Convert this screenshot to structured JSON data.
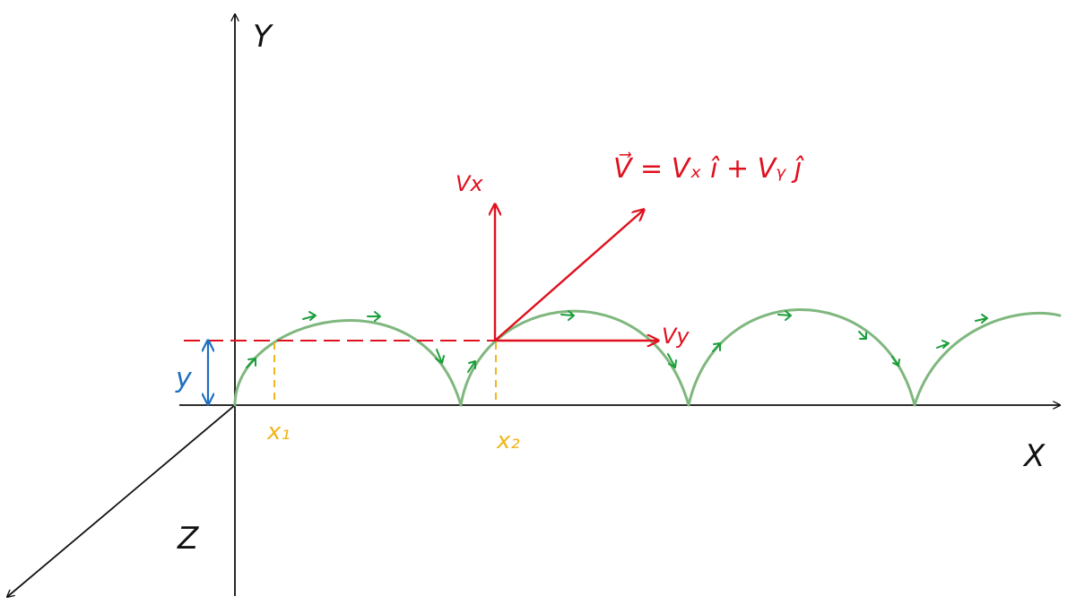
{
  "colors": {
    "axis": "#111111",
    "vector": "#e0101e",
    "trajectory": "#7fb77e",
    "direction_arrow": "#1a9e3a",
    "projection": "#f2b51c",
    "height": "#1f6fbf"
  },
  "axes": {
    "x_label": "X",
    "y_label": "Y",
    "z_label": "Z"
  },
  "vectors": {
    "equation": "V⃗ = Vₓ î + Vᵧ ĵ",
    "vertical_label": "Vx",
    "horizontal_label": "Vy"
  },
  "markers": {
    "x1_label": "x₁",
    "x2_label": "x₂",
    "height_label": "y"
  }
}
